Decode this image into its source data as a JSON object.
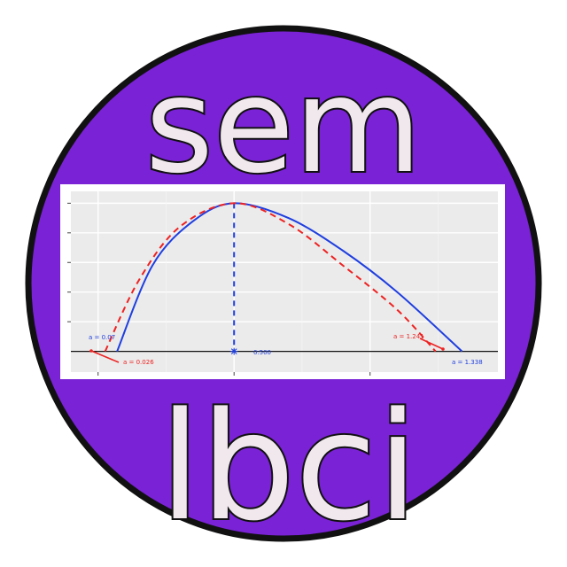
{
  "logo": {
    "top_word": "sem",
    "bottom_word": "lbci",
    "colors": {
      "circle_fill": "#7a22d6",
      "circle_stroke": "#111111",
      "panel_background": "#ebebeb",
      "panel_frame": "#ffffff",
      "solid_curve": "#1f3fe0",
      "dashed_curve": "#ee2222",
      "axis_line": "#111111",
      "word_fill": "#f1e8ee"
    }
  },
  "chart_data": {
    "type": "line",
    "title": "",
    "xlabel": "",
    "ylabel": "",
    "grid": true,
    "xlim": [
      -0.1,
      1.47
    ],
    "ylim": [
      -0.07,
      0.54
    ],
    "baseline_y": 0,
    "peak_x": 0.5,
    "peak_y": 0.5,
    "series": [
      {
        "style": "solid",
        "color": "#1f3fe0",
        "x": [
          0.07,
          0.2,
          0.35,
          0.5,
          0.7,
          0.9,
          1.1,
          1.338
        ],
        "y": [
          0.0,
          0.29,
          0.44,
          0.5,
          0.45,
          0.34,
          0.2,
          0.0
        ]
      },
      {
        "style": "dashed",
        "color": "#ee2222",
        "x": [
          0.026,
          0.15,
          0.3,
          0.5,
          0.7,
          0.9,
          1.1,
          1.241
        ],
        "y": [
          0.0,
          0.24,
          0.42,
          0.5,
          0.43,
          0.29,
          0.14,
          0.0
        ]
      }
    ],
    "annotations": [
      {
        "text": "a = 0.07",
        "color": "#1f3fe0",
        "x": 0.07
      },
      {
        "text": "a = 0.026",
        "color": "#ee2222",
        "x": 0.026
      },
      {
        "text": "0.500",
        "color": "#1f3fe0",
        "x": 0.5
      },
      {
        "text": "a = 1.241",
        "color": "#ee2222",
        "x": 1.241
      },
      {
        "text": "a = 1.338",
        "color": "#1f3fe0",
        "x": 1.338
      }
    ]
  }
}
